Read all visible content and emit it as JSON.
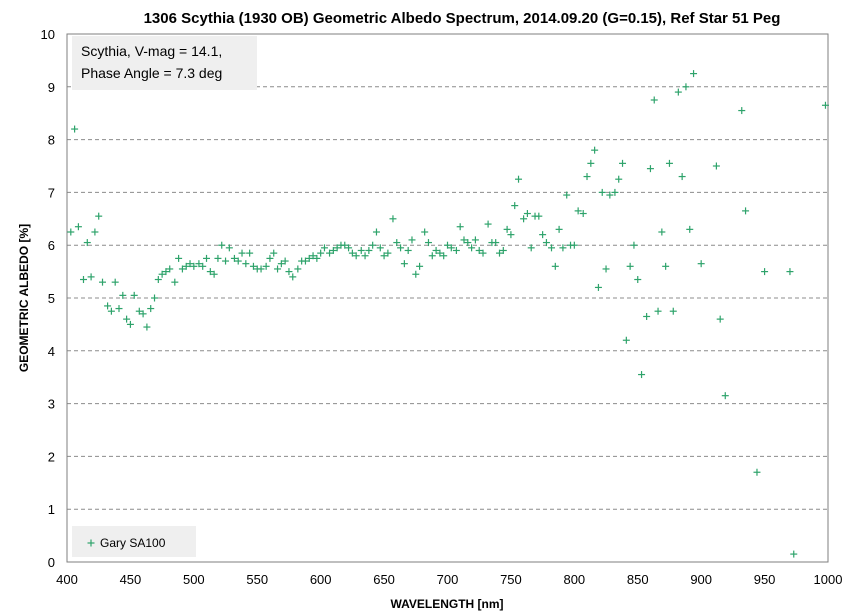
{
  "chart_data": {
    "type": "scatter",
    "title": "1306 Scythia (1930 OB) Geometric Albedo Spectrum, 2014.09.20 (G=0.15), Ref Star 51 Peg",
    "xlabel": "WAVELENGTH [nm]",
    "ylabel": "GEOMETRIC ALBEDO [%]",
    "xlim": [
      400,
      1000
    ],
    "ylim": [
      0,
      10
    ],
    "xticks": [
      400,
      450,
      500,
      550,
      600,
      650,
      700,
      750,
      800,
      850,
      900,
      950,
      1000
    ],
    "yticks": [
      0,
      1,
      2,
      3,
      4,
      5,
      6,
      7,
      8,
      9,
      10
    ],
    "grid": "horizontal dashed",
    "annotation_lines": [
      "Scythia, V-mag = 14.1,",
      "Phase Angle = 7.3 deg"
    ],
    "legend_position": "bottom-left",
    "marker_color": "#2ea36b",
    "series": [
      {
        "name": "Gary SA100",
        "points": [
          [
            403,
            6.25
          ],
          [
            406,
            8.2
          ],
          [
            409,
            6.35
          ],
          [
            413,
            5.35
          ],
          [
            416,
            6.05
          ],
          [
            419,
            5.4
          ],
          [
            422,
            6.25
          ],
          [
            425,
            6.55
          ],
          [
            428,
            5.3
          ],
          [
            432,
            4.85
          ],
          [
            435,
            4.75
          ],
          [
            438,
            5.3
          ],
          [
            441,
            4.8
          ],
          [
            444,
            5.05
          ],
          [
            447,
            4.6
          ],
          [
            450,
            4.5
          ],
          [
            453,
            5.05
          ],
          [
            457,
            4.75
          ],
          [
            460,
            4.7
          ],
          [
            463,
            4.45
          ],
          [
            466,
            4.8
          ],
          [
            469,
            5.0
          ],
          [
            472,
            5.35
          ],
          [
            475,
            5.45
          ],
          [
            478,
            5.5
          ],
          [
            481,
            5.55
          ],
          [
            485,
            5.3
          ],
          [
            488,
            5.75
          ],
          [
            491,
            5.55
          ],
          [
            494,
            5.6
          ],
          [
            497,
            5.65
          ],
          [
            500,
            5.6
          ],
          [
            504,
            5.65
          ],
          [
            507,
            5.6
          ],
          [
            510,
            5.75
          ],
          [
            513,
            5.5
          ],
          [
            516,
            5.45
          ],
          [
            519,
            5.75
          ],
          [
            522,
            6.0
          ],
          [
            525,
            5.7
          ],
          [
            528,
            5.95
          ],
          [
            532,
            5.75
          ],
          [
            535,
            5.7
          ],
          [
            538,
            5.85
          ],
          [
            541,
            5.65
          ],
          [
            544,
            5.85
          ],
          [
            547,
            5.6
          ],
          [
            550,
            5.55
          ],
          [
            553,
            5.55
          ],
          [
            557,
            5.6
          ],
          [
            560,
            5.75
          ],
          [
            563,
            5.85
          ],
          [
            566,
            5.55
          ],
          [
            569,
            5.65
          ],
          [
            572,
            5.7
          ],
          [
            575,
            5.5
          ],
          [
            578,
            5.4
          ],
          [
            582,
            5.55
          ],
          [
            585,
            5.7
          ],
          [
            588,
            5.7
          ],
          [
            591,
            5.75
          ],
          [
            594,
            5.8
          ],
          [
            597,
            5.75
          ],
          [
            600,
            5.85
          ],
          [
            603,
            5.95
          ],
          [
            607,
            5.85
          ],
          [
            610,
            5.9
          ],
          [
            613,
            5.95
          ],
          [
            616,
            6.0
          ],
          [
            619,
            6.0
          ],
          [
            622,
            5.95
          ],
          [
            625,
            5.85
          ],
          [
            628,
            5.8
          ],
          [
            632,
            5.9
          ],
          [
            635,
            5.8
          ],
          [
            638,
            5.9
          ],
          [
            641,
            6.0
          ],
          [
            644,
            6.25
          ],
          [
            647,
            5.95
          ],
          [
            650,
            5.8
          ],
          [
            653,
            5.85
          ],
          [
            657,
            6.5
          ],
          [
            660,
            6.05
          ],
          [
            663,
            5.95
          ],
          [
            666,
            5.65
          ],
          [
            669,
            5.9
          ],
          [
            672,
            6.1
          ],
          [
            675,
            5.45
          ],
          [
            678,
            5.6
          ],
          [
            682,
            6.25
          ],
          [
            685,
            6.05
          ],
          [
            688,
            5.8
          ],
          [
            691,
            5.9
          ],
          [
            694,
            5.85
          ],
          [
            697,
            5.8
          ],
          [
            700,
            6.0
          ],
          [
            703,
            5.95
          ],
          [
            707,
            5.9
          ],
          [
            710,
            6.35
          ],
          [
            713,
            6.1
          ],
          [
            716,
            6.05
          ],
          [
            719,
            5.95
          ],
          [
            722,
            6.1
          ],
          [
            725,
            5.9
          ],
          [
            728,
            5.85
          ],
          [
            732,
            6.4
          ],
          [
            735,
            6.05
          ],
          [
            738,
            6.05
          ],
          [
            741,
            5.85
          ],
          [
            744,
            5.9
          ],
          [
            747,
            6.3
          ],
          [
            750,
            6.2
          ],
          [
            753,
            6.75
          ],
          [
            756,
            7.25
          ],
          [
            760,
            6.5
          ],
          [
            763,
            6.6
          ],
          [
            766,
            5.95
          ],
          [
            769,
            6.55
          ],
          [
            772,
            6.55
          ],
          [
            775,
            6.2
          ],
          [
            778,
            6.05
          ],
          [
            782,
            5.95
          ],
          [
            785,
            5.6
          ],
          [
            788,
            6.3
          ],
          [
            791,
            5.95
          ],
          [
            794,
            6.95
          ],
          [
            797,
            6.0
          ],
          [
            800,
            6.0
          ],
          [
            803,
            6.65
          ],
          [
            807,
            6.6
          ],
          [
            810,
            7.3
          ],
          [
            813,
            7.55
          ],
          [
            816,
            7.8
          ],
          [
            819,
            5.2
          ],
          [
            822,
            7.0
          ],
          [
            825,
            5.55
          ],
          [
            828,
            6.95
          ],
          [
            832,
            7.0
          ],
          [
            835,
            7.25
          ],
          [
            838,
            7.55
          ],
          [
            841,
            4.2
          ],
          [
            844,
            5.6
          ],
          [
            847,
            6.0
          ],
          [
            850,
            5.35
          ],
          [
            853,
            3.55
          ],
          [
            857,
            4.65
          ],
          [
            860,
            7.45
          ],
          [
            863,
            8.75
          ],
          [
            866,
            4.75
          ],
          [
            869,
            6.25
          ],
          [
            872,
            5.6
          ],
          [
            875,
            7.55
          ],
          [
            878,
            4.75
          ],
          [
            882,
            8.9
          ],
          [
            885,
            7.3
          ],
          [
            888,
            9.0
          ],
          [
            891,
            6.3
          ],
          [
            894,
            9.25
          ],
          [
            900,
            5.65
          ],
          [
            912,
            7.5
          ],
          [
            915,
            4.6
          ],
          [
            919,
            3.15
          ],
          [
            932,
            8.55
          ],
          [
            935,
            6.65
          ],
          [
            944,
            1.7
          ],
          [
            950,
            5.5
          ],
          [
            970,
            5.5
          ],
          [
            973,
            0.15
          ],
          [
            998,
            8.65
          ]
        ]
      }
    ]
  }
}
